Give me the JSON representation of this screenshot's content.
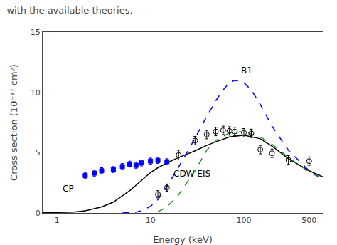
{
  "chart_data": {
    "type": "line",
    "title": "with the available theories.",
    "xlabel": "Energy (keV)",
    "ylabel": "Cross section (10⁻¹⁷ cm²)",
    "log": "x",
    "xlim": [
      0.7,
      700
    ],
    "xticks": [
      1,
      10,
      100,
      500
    ],
    "ylim": [
      0,
      15
    ],
    "yticks": [
      0,
      5,
      10,
      15
    ],
    "grid": false,
    "series": [
      {
        "type": "line",
        "color": "#000000",
        "line_style": "solid",
        "x": [
          0.7,
          1.0,
          1.5,
          2.0,
          3.0,
          4.0,
          5.0,
          6.0,
          7.0,
          8.0,
          10.0,
          12.0,
          15.0,
          20.0,
          30.0,
          40.0,
          50.0,
          70.0,
          100.0,
          150.0,
          200.0,
          300.0,
          500.0,
          700.0
        ],
        "values": [
          0.01,
          0.03,
          0.08,
          0.18,
          0.5,
          0.9,
          1.4,
          1.85,
          2.3,
          2.7,
          3.35,
          3.75,
          4.15,
          4.6,
          5.15,
          5.6,
          5.9,
          6.3,
          6.45,
          6.15,
          5.55,
          4.5,
          3.5,
          3.0
        ]
      },
      {
        "type": "line",
        "color": "#0000ff",
        "line_style": "dashed",
        "x": [
          5.0,
          6.0,
          7.0,
          8.0,
          10.0,
          12.0,
          15.0,
          20.0,
          30.0,
          40.0,
          50.0,
          60.0,
          70.0,
          80.0,
          100.0,
          120.0,
          150.0,
          200.0,
          300.0,
          500.0,
          700.0
        ],
        "values": [
          0.0,
          0.02,
          0.07,
          0.18,
          0.55,
          1.1,
          2.2,
          3.8,
          6.2,
          8.0,
          9.3,
          10.2,
          10.8,
          11.0,
          10.8,
          10.2,
          9.0,
          7.2,
          5.2,
          3.5,
          2.8
        ]
      },
      {
        "type": "line",
        "color": "#228B22",
        "line_style": "dashed",
        "x": [
          12.0,
          15.0,
          20.0,
          30.0,
          40.0,
          50.0,
          70.0,
          100.0,
          150.0,
          200.0,
          300.0,
          500.0,
          700.0
        ],
        "values": [
          0.1,
          0.5,
          1.5,
          3.5,
          5.2,
          6.0,
          6.65,
          6.75,
          6.3,
          5.7,
          4.6,
          3.4,
          2.8
        ]
      },
      {
        "type": "scatter",
        "color": "#0000ff",
        "marker": "square",
        "x": [
          2.0,
          2.5,
          3.0,
          4.0,
          5.0,
          6.0,
          7.0,
          8.0,
          10.0,
          12.0,
          15.0
        ],
        "values": [
          3.1,
          3.3,
          3.5,
          3.6,
          3.85,
          4.05,
          3.95,
          4.15,
          4.3,
          4.35,
          4.25
        ],
        "errors": [
          0.25,
          0.25,
          0.25,
          0.25,
          0.25,
          0.25,
          0.25,
          0.25,
          0.25,
          0.25,
          0.25
        ]
      },
      {
        "type": "scatter",
        "color": "#000000",
        "marker": "open circle",
        "x": [
          12.0,
          15.0,
          20.0,
          30.0,
          40.0,
          50.0,
          60.0,
          70.0,
          80.0,
          100.0,
          120.0,
          150.0,
          200.0,
          300.0,
          500.0
        ],
        "values": [
          1.55,
          2.1,
          4.8,
          6.0,
          6.5,
          6.75,
          6.85,
          6.8,
          6.75,
          6.65,
          6.6,
          5.25,
          4.95,
          4.4,
          4.3
        ],
        "errors": [
          0.3,
          0.3,
          0.4,
          0.35,
          0.35,
          0.35,
          0.35,
          0.35,
          0.35,
          0.35,
          0.35,
          0.35,
          0.35,
          0.35,
          0.35
        ]
      }
    ],
    "annotations": [
      {
        "text": "CP",
        "x": 1.1,
        "y": 1.5
      },
      {
        "text": "B1",
        "x": 90,
        "y": 11.3
      },
      {
        "text": "CDW-EIS",
        "x": 17,
        "y": 2.7
      }
    ]
  }
}
